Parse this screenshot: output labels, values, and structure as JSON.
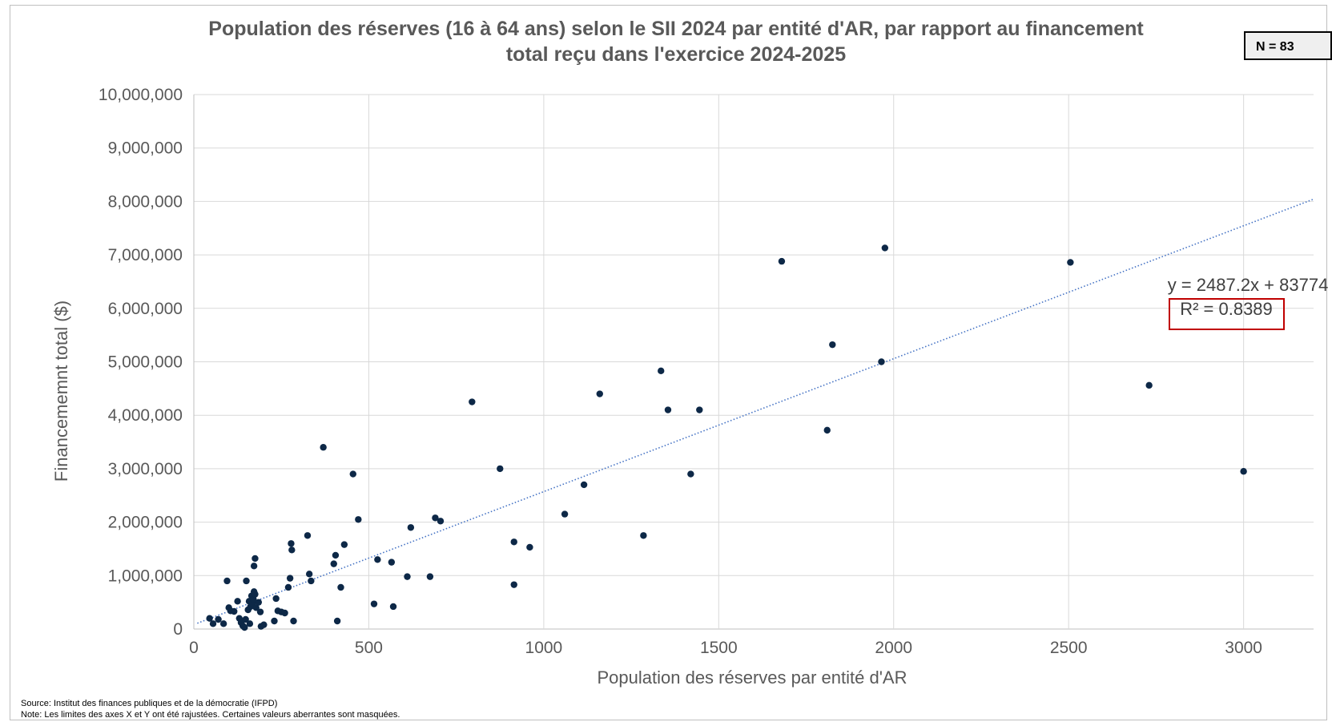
{
  "chart_data": {
    "type": "scatter",
    "title_lines": [
      "Population des réserves (16 à 64 ans) selon le SII 2024 par entité d'AR, par rapport au financement",
      "total reçu dans l'exercice 2024-2025"
    ],
    "n_label": "N = 83",
    "xlabel": "Population des réserves par entité d'AR",
    "ylabel": "Financememnt total ($)",
    "xlim": [
      0,
      3200
    ],
    "ylim": [
      0,
      10000000
    ],
    "x_ticks": [
      0,
      500,
      1000,
      1500,
      2000,
      2500,
      3000
    ],
    "x_tick_labels": [
      "0",
      "500",
      "1000",
      "1500",
      "2000",
      "2500",
      "3000"
    ],
    "y_ticks": [
      0,
      1000000,
      2000000,
      3000000,
      4000000,
      5000000,
      6000000,
      7000000,
      8000000,
      9000000,
      10000000
    ],
    "y_tick_labels": [
      "0",
      "1,000,000",
      "2,000,000",
      "3,000,000",
      "4,000,000",
      "5,000,000",
      "6,000,000",
      "7,000,000",
      "8,000,000",
      "9,000,000",
      "10,000,000"
    ],
    "grid": true,
    "marker_color": "#0d2847",
    "trendline": {
      "slope": 2487.2,
      "intercept": 83774,
      "equation_label": "y = 2487.2x + 83774",
      "r2_label": "R² = 0.8389",
      "color": "#4472c4",
      "style": "dotted"
    },
    "r2_box_color": "#c00000",
    "points": [
      {
        "x": 45,
        "y": 200000
      },
      {
        "x": 55,
        "y": 100000
      },
      {
        "x": 70,
        "y": 180000
      },
      {
        "x": 85,
        "y": 100000
      },
      {
        "x": 95,
        "y": 900000
      },
      {
        "x": 100,
        "y": 400000
      },
      {
        "x": 105,
        "y": 340000
      },
      {
        "x": 115,
        "y": 330000
      },
      {
        "x": 125,
        "y": 520000
      },
      {
        "x": 130,
        "y": 200000
      },
      {
        "x": 135,
        "y": 120000
      },
      {
        "x": 140,
        "y": 60000
      },
      {
        "x": 145,
        "y": 30000
      },
      {
        "x": 148,
        "y": 180000
      },
      {
        "x": 150,
        "y": 900000
      },
      {
        "x": 155,
        "y": 360000
      },
      {
        "x": 158,
        "y": 520000
      },
      {
        "x": 160,
        "y": 100000
      },
      {
        "x": 162,
        "y": 420000
      },
      {
        "x": 165,
        "y": 620000
      },
      {
        "x": 168,
        "y": 480000
      },
      {
        "x": 170,
        "y": 560000
      },
      {
        "x": 172,
        "y": 700000
      },
      {
        "x": 172,
        "y": 1180000
      },
      {
        "x": 175,
        "y": 650000
      },
      {
        "x": 175,
        "y": 1320000
      },
      {
        "x": 178,
        "y": 400000
      },
      {
        "x": 185,
        "y": 500000
      },
      {
        "x": 190,
        "y": 320000
      },
      {
        "x": 192,
        "y": 50000
      },
      {
        "x": 200,
        "y": 80000
      },
      {
        "x": 230,
        "y": 150000
      },
      {
        "x": 235,
        "y": 570000
      },
      {
        "x": 240,
        "y": 340000
      },
      {
        "x": 250,
        "y": 320000
      },
      {
        "x": 260,
        "y": 300000
      },
      {
        "x": 270,
        "y": 780000
      },
      {
        "x": 275,
        "y": 950000
      },
      {
        "x": 278,
        "y": 1600000
      },
      {
        "x": 280,
        "y": 1480000
      },
      {
        "x": 285,
        "y": 150000
      },
      {
        "x": 325,
        "y": 1750000
      },
      {
        "x": 330,
        "y": 1030000
      },
      {
        "x": 335,
        "y": 900000
      },
      {
        "x": 370,
        "y": 3400000
      },
      {
        "x": 400,
        "y": 1220000
      },
      {
        "x": 405,
        "y": 1380000
      },
      {
        "x": 410,
        "y": 150000
      },
      {
        "x": 420,
        "y": 780000
      },
      {
        "x": 430,
        "y": 1580000
      },
      {
        "x": 455,
        "y": 2900000
      },
      {
        "x": 470,
        "y": 2050000
      },
      {
        "x": 515,
        "y": 470000
      },
      {
        "x": 525,
        "y": 1300000
      },
      {
        "x": 565,
        "y": 1250000
      },
      {
        "x": 570,
        "y": 420000
      },
      {
        "x": 610,
        "y": 980000
      },
      {
        "x": 620,
        "y": 1900000
      },
      {
        "x": 675,
        "y": 980000
      },
      {
        "x": 690,
        "y": 2080000
      },
      {
        "x": 705,
        "y": 2020000
      },
      {
        "x": 795,
        "y": 4250000
      },
      {
        "x": 875,
        "y": 3000000
      },
      {
        "x": 915,
        "y": 1630000
      },
      {
        "x": 915,
        "y": 830000
      },
      {
        "x": 960,
        "y": 1530000
      },
      {
        "x": 1060,
        "y": 2150000
      },
      {
        "x": 1115,
        "y": 2700000
      },
      {
        "x": 1160,
        "y": 4400000
      },
      {
        "x": 1285,
        "y": 1750000
      },
      {
        "x": 1335,
        "y": 4830000
      },
      {
        "x": 1355,
        "y": 4100000
      },
      {
        "x": 1420,
        "y": 2900000
      },
      {
        "x": 1445,
        "y": 4100000
      },
      {
        "x": 1680,
        "y": 6880000
      },
      {
        "x": 1810,
        "y": 3720000
      },
      {
        "x": 1825,
        "y": 5320000
      },
      {
        "x": 1965,
        "y": 5000000
      },
      {
        "x": 1975,
        "y": 7130000
      },
      {
        "x": 2505,
        "y": 6860000
      },
      {
        "x": 2730,
        "y": 4560000
      },
      {
        "x": 3000,
        "y": 2950000
      }
    ]
  },
  "footnotes": {
    "source": "Source: Institut des finances publiques et de la démocratie (IFPD)",
    "note": "Note: Les limites des axes X et Y ont été rajustées. Certaines valeurs aberrantes sont masquées."
  }
}
